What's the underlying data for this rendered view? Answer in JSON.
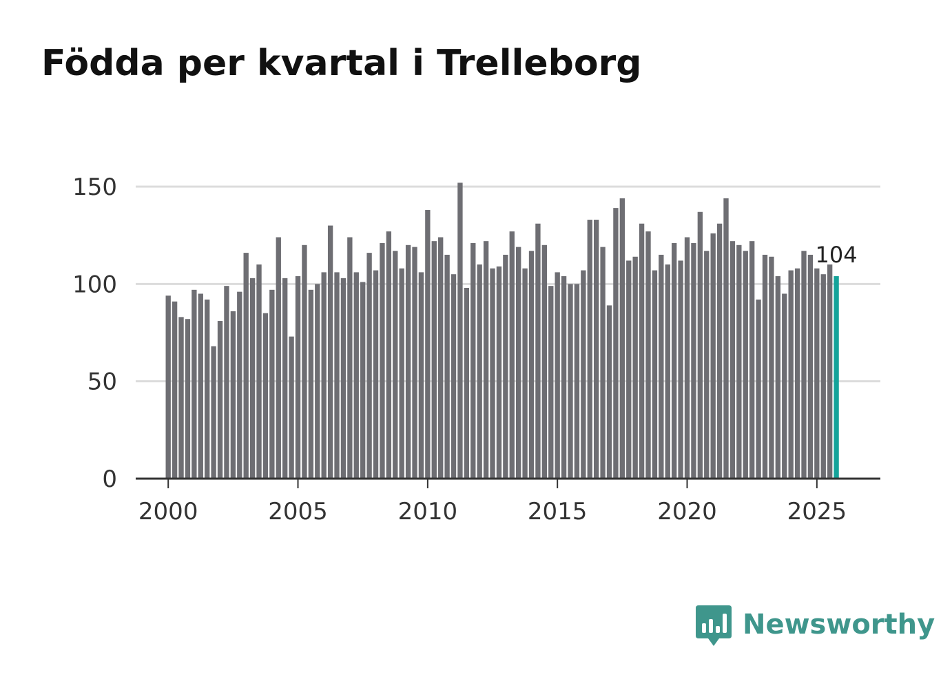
{
  "colors": {
    "bar": "#6e6e73",
    "highlight": "#14a39a",
    "grid": "#dcdcdc",
    "axis": "#333333",
    "brand": "#3f968c"
  },
  "brand": {
    "name": "Newsworthy",
    "icon": "newsworthy-logo-icon"
  },
  "chart_data": {
    "type": "bar",
    "title": "Födda per kvartal i Trelleborg",
    "xlabel": "",
    "ylabel": "",
    "ylim": [
      0,
      150
    ],
    "yticks": [
      0,
      50,
      100,
      150
    ],
    "xlim": [
      1998.8,
      2027.5
    ],
    "xticks": [
      2000,
      2005,
      2010,
      2015,
      2020,
      2025
    ],
    "grid": true,
    "legend": "none",
    "series": [
      {
        "name": "Födda",
        "start_year": 2000,
        "start_quarter": 1,
        "values": [
          94,
          91,
          83,
          82,
          97,
          95,
          92,
          68,
          81,
          99,
          86,
          96,
          116,
          103,
          110,
          85,
          97,
          124,
          103,
          73,
          104,
          120,
          97,
          100,
          106,
          130,
          106,
          103,
          124,
          106,
          101,
          116,
          107,
          121,
          127,
          117,
          108,
          120,
          119,
          106,
          138,
          122,
          124,
          115,
          105,
          152,
          98,
          121,
          110,
          122,
          108,
          109,
          115,
          127,
          119,
          108,
          117,
          131,
          120,
          99,
          106,
          104,
          100,
          100,
          107,
          133,
          133,
          119,
          89,
          139,
          144,
          112,
          114,
          131,
          127,
          107,
          115,
          110,
          121,
          112,
          124,
          121,
          137,
          117,
          126,
          131,
          144,
          122,
          120,
          117,
          122,
          92,
          115,
          114,
          104,
          95,
          107,
          108,
          117,
          115,
          108,
          105,
          110,
          104
        ]
      }
    ],
    "annotation": {
      "label": "104",
      "value": 104
    }
  }
}
